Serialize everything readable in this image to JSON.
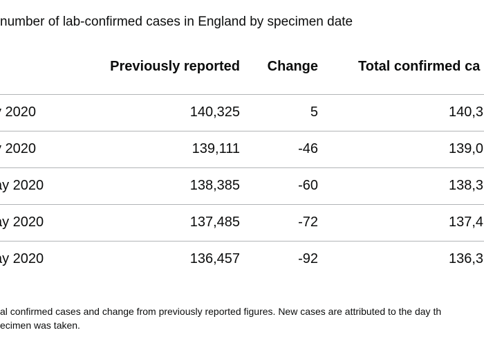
{
  "caption": "number of lab-confirmed cases in England by specimen date",
  "table": {
    "headers": {
      "date": "",
      "previously_reported": "Previously reported",
      "change": "Change",
      "total_confirmed": "Total confirmed ca"
    },
    "rows": [
      {
        "date": "y 2020",
        "previously_reported": "140,325",
        "change": "5",
        "total": "140,3"
      },
      {
        "date": "y 2020",
        "previously_reported": "139,111",
        "change": "-46",
        "total": "139,0"
      },
      {
        "date": "ay 2020",
        "previously_reported": "138,385",
        "change": "-60",
        "total": "138,3"
      },
      {
        "date": "ay 2020",
        "previously_reported": "137,485",
        "change": "-72",
        "total": "137,4"
      },
      {
        "date": "ay 2020",
        "previously_reported": "136,457",
        "change": "-92",
        "total": "136,3"
      }
    ]
  },
  "footnote": {
    "line1": "al confirmed cases and change from previously reported figures. New cases are attributed to the day th",
    "line2": "ecimen was taken."
  },
  "colors": {
    "text": "#0b0c0c",
    "divider": "#b1b4b6"
  }
}
